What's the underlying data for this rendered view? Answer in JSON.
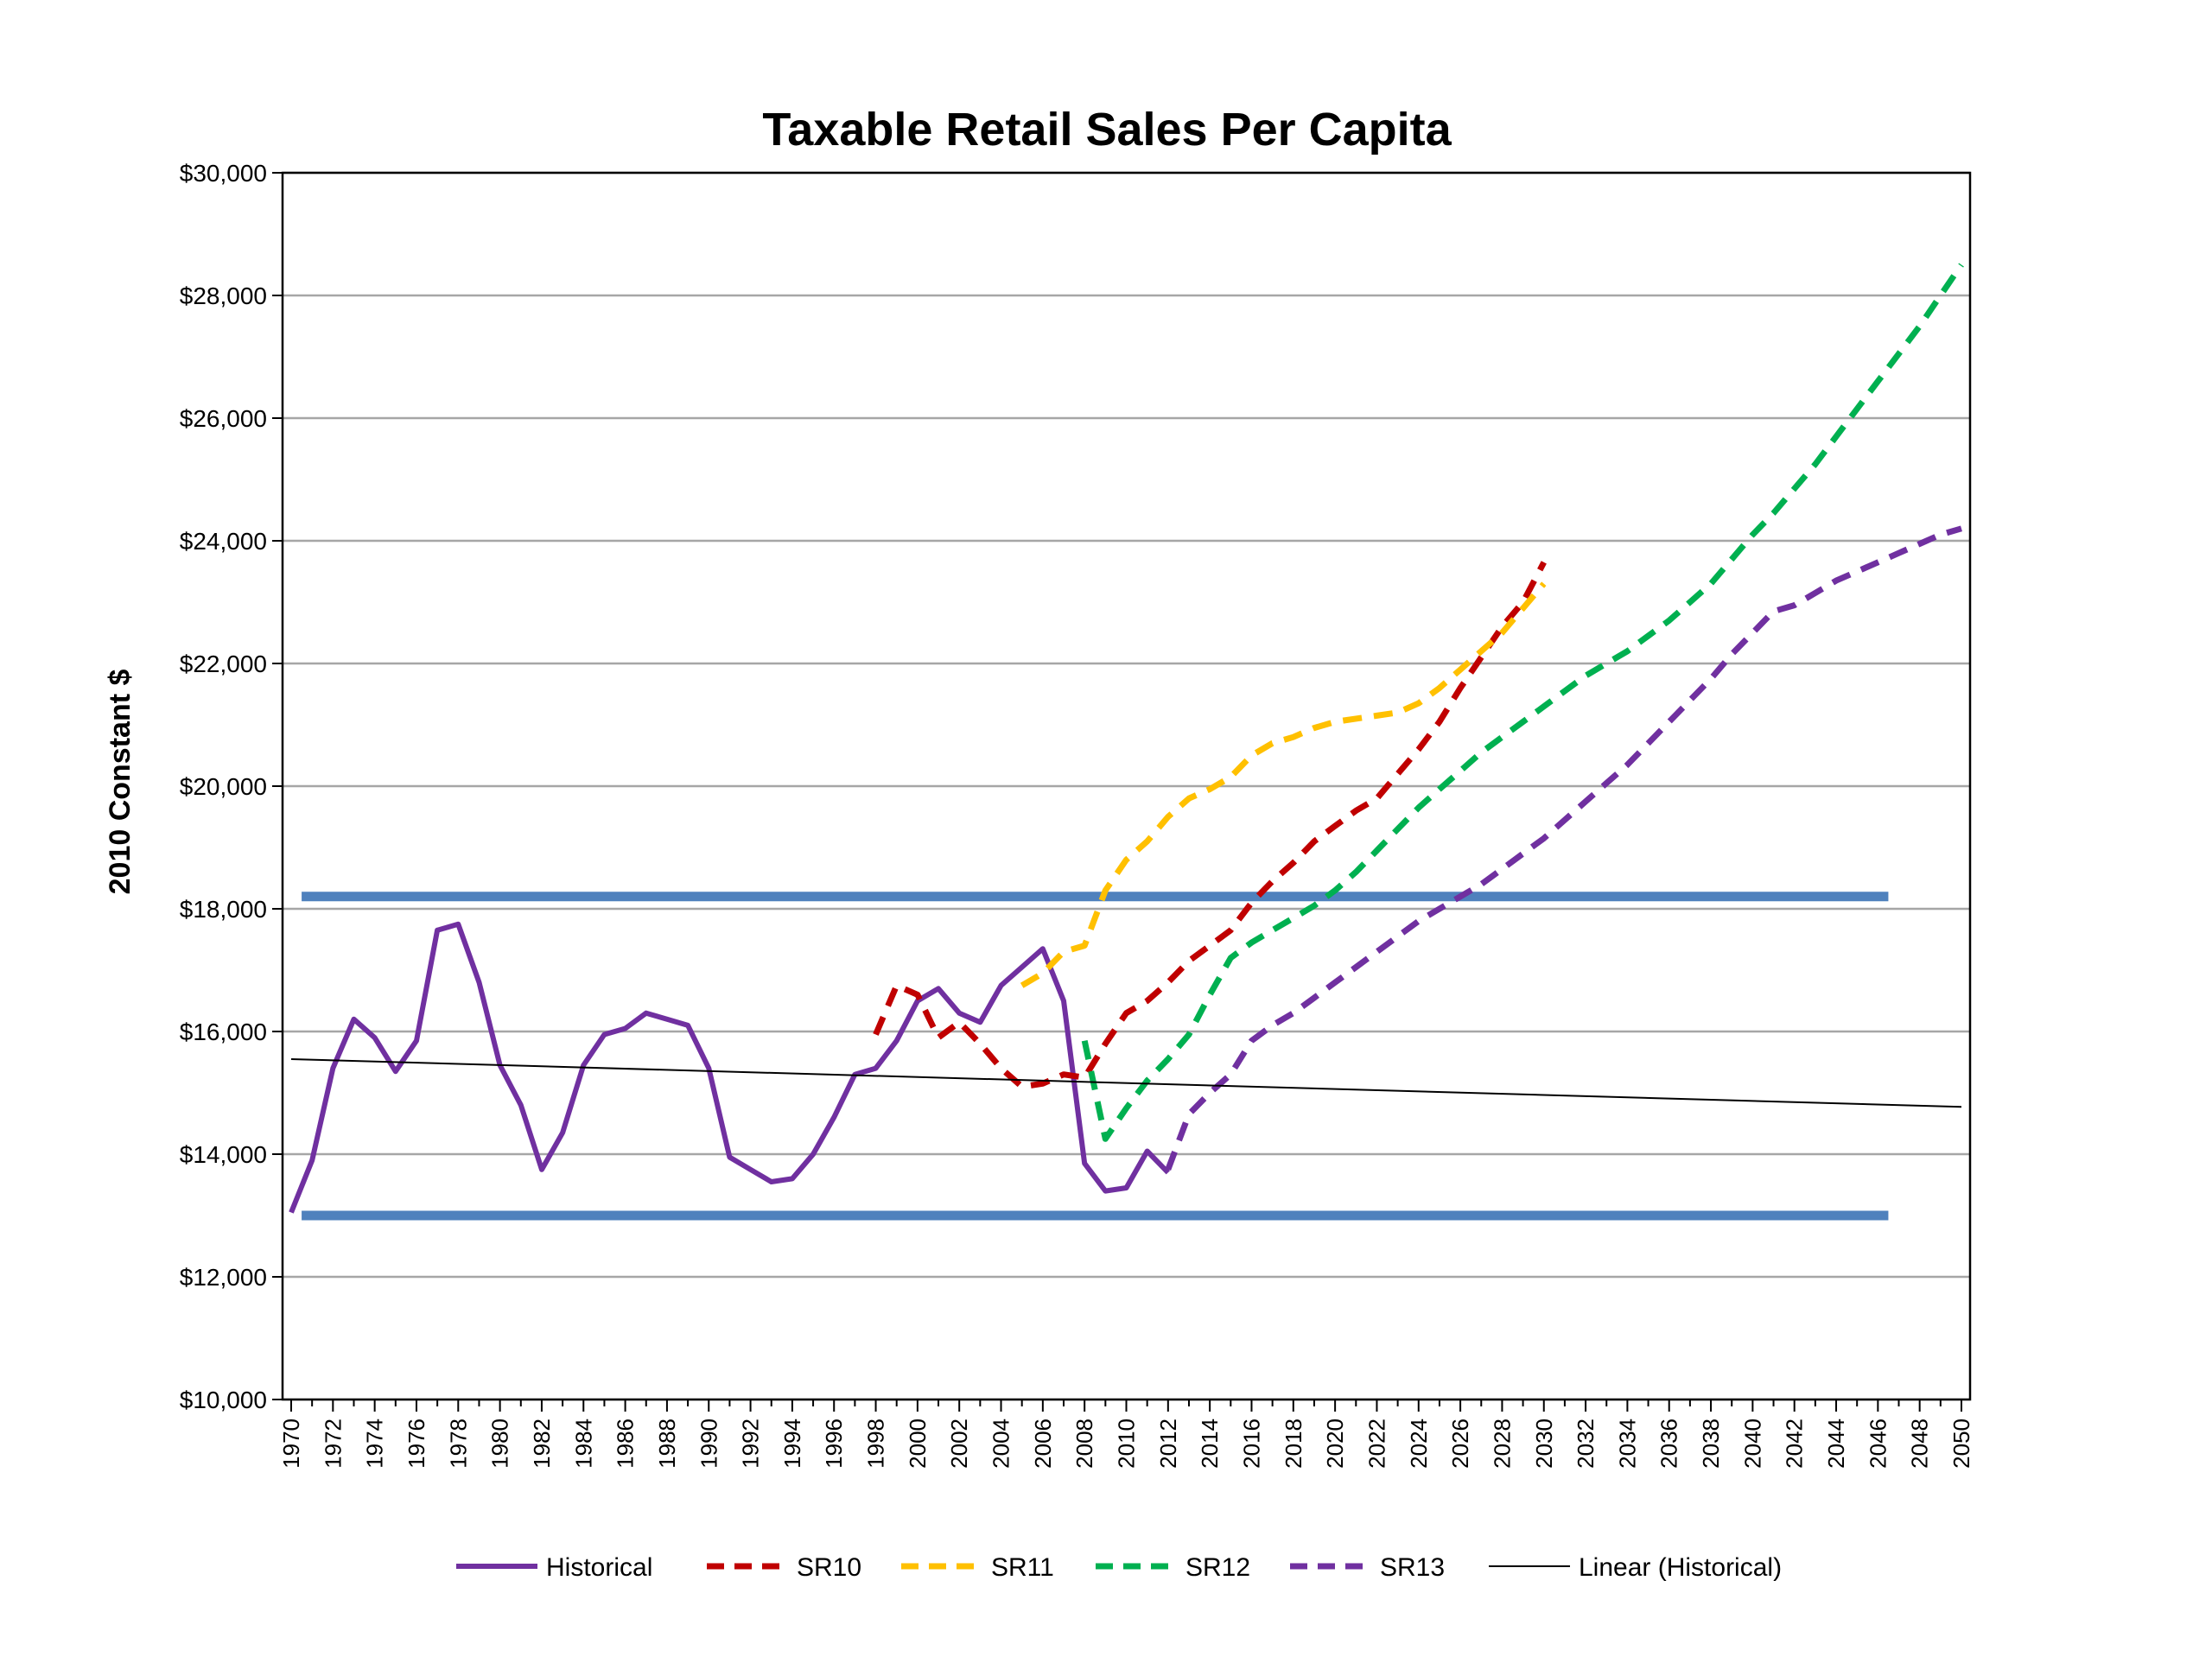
{
  "chart_data": {
    "type": "line",
    "title": "Taxable Retail Sales Per Capita",
    "ylabel": "2010 Constant $",
    "xlabel": "",
    "xlim": [
      1970,
      2050
    ],
    "ylim": [
      10000,
      30000
    ],
    "y_ticks": [
      10000,
      12000,
      14000,
      16000,
      18000,
      20000,
      22000,
      24000,
      26000,
      28000,
      30000
    ],
    "y_tick_labels": [
      "$10,000",
      "$12,000",
      "$14,000",
      "$16,000",
      "$18,000",
      "$20,000",
      "$22,000",
      "$24,000",
      "$26,000",
      "$28,000",
      "$30,000"
    ],
    "x_ticks": [
      "1970",
      "1972",
      "1974",
      "1976",
      "1978",
      "1980",
      "1982",
      "1984",
      "1986",
      "1988",
      "1990",
      "1992",
      "1994",
      "1996",
      "1998",
      "2000",
      "2002",
      "2004",
      "2006",
      "2008",
      "2010",
      "2012",
      "2014",
      "2016",
      "2018",
      "2020",
      "2022",
      "2024",
      "2026",
      "2028",
      "2030",
      "2032",
      "2034",
      "2036",
      "2038",
      "2040",
      "2042",
      "2044",
      "2046",
      "2048",
      "2050"
    ],
    "grid": true,
    "legend_position": "bottom",
    "series": [
      {
        "name": "Historical",
        "color": "#7030a0",
        "style": "solid",
        "x": [
          1970,
          1971,
          1972,
          1973,
          1974,
          1975,
          1976,
          1977,
          1978,
          1979,
          1980,
          1981,
          1982,
          1983,
          1984,
          1985,
          1986,
          1987,
          1988,
          1989,
          1990,
          1991,
          1992,
          1993,
          1994,
          1995,
          1996,
          1997,
          1998,
          1999,
          2000,
          2001,
          2002,
          2003,
          2004,
          2005,
          2006,
          2007,
          2008,
          2009,
          2010,
          2011,
          2012
        ],
        "values": [
          13050,
          13900,
          15400,
          16200,
          15900,
          15350,
          15850,
          17650,
          17750,
          16800,
          15450,
          14800,
          13750,
          14350,
          15450,
          15950,
          16050,
          16300,
          16200,
          16100,
          15400,
          13950,
          13750,
          13550,
          13600,
          14000,
          14600,
          15300,
          15400,
          15850,
          16500,
          16700,
          16300,
          16150,
          16750,
          17050,
          17350,
          16500,
          13850,
          13400,
          13450,
          14050,
          13700
        ]
      },
      {
        "name": "SR10",
        "color": "#c00000",
        "style": "dashed",
        "x": [
          1998,
          1999,
          2000,
          2001,
          2002,
          2003,
          2004,
          2005,
          2006,
          2007,
          2008,
          2009,
          2010,
          2011,
          2012,
          2013,
          2014,
          2015,
          2016,
          2017,
          2018,
          2019,
          2020,
          2021,
          2022,
          2023,
          2024,
          2025,
          2026,
          2027,
          2028,
          2029,
          2030
        ],
        "values": [
          15950,
          16750,
          16600,
          15900,
          16150,
          15800,
          15400,
          15100,
          15150,
          15300,
          15250,
          15800,
          16300,
          16500,
          16800,
          17150,
          17400,
          17650,
          18100,
          18450,
          18750,
          19100,
          19350,
          19600,
          19800,
          20200,
          20600,
          21050,
          21600,
          22100,
          22600,
          23000,
          23650
        ]
      },
      {
        "name": "SR11",
        "color": "#ffc000",
        "style": "dashed",
        "x": [
          2005,
          2006,
          2007,
          2008,
          2009,
          2010,
          2011,
          2012,
          2013,
          2014,
          2015,
          2016,
          2017,
          2018,
          2019,
          2020,
          2021,
          2022,
          2023,
          2024,
          2025,
          2026,
          2027,
          2028,
          2029,
          2030
        ],
        "values": [
          16750,
          16950,
          17300,
          17400,
          18300,
          18800,
          19100,
          19500,
          19800,
          19950,
          20150,
          20500,
          20700,
          20800,
          20950,
          21050,
          21100,
          21150,
          21200,
          21350,
          21600,
          21900,
          22200,
          22500,
          22900,
          23300
        ]
      },
      {
        "name": "SR12",
        "color": "#00b050",
        "style": "dashed",
        "x": [
          2008,
          2009,
          2010,
          2011,
          2012,
          2013,
          2014,
          2015,
          2016,
          2017,
          2018,
          2019,
          2020,
          2021,
          2022,
          2023,
          2024,
          2025,
          2026,
          2027,
          2028,
          2029,
          2030,
          2031,
          2032,
          2033,
          2034,
          2035,
          2036,
          2037,
          2038,
          2039,
          2040,
          2041,
          2042,
          2043,
          2044,
          2045,
          2046,
          2047,
          2048,
          2049,
          2050
        ],
        "values": [
          15850,
          14250,
          14750,
          15200,
          15550,
          15950,
          16600,
          17200,
          17450,
          17650,
          17850,
          18050,
          18300,
          18600,
          18950,
          19300,
          19650,
          19950,
          20250,
          20550,
          20800,
          21050,
          21300,
          21550,
          21800,
          22000,
          22200,
          22450,
          22700,
          23000,
          23300,
          23700,
          24100,
          24450,
          24850,
          25250,
          25700,
          26150,
          26600,
          27050,
          27500,
          28000,
          28500
        ]
      },
      {
        "name": "SR13",
        "color": "#7030a0",
        "style": "dashed",
        "x": [
          2012,
          2013,
          2014,
          2015,
          2016,
          2017,
          2018,
          2019,
          2020,
          2021,
          2022,
          2023,
          2024,
          2025,
          2026,
          2027,
          2028,
          2029,
          2030,
          2031,
          2032,
          2033,
          2034,
          2035,
          2036,
          2037,
          2038,
          2039,
          2040,
          2041,
          2042,
          2043,
          2044,
          2045,
          2046,
          2047,
          2048,
          2049,
          2050
        ],
        "values": [
          13750,
          14650,
          15000,
          15300,
          15850,
          16100,
          16300,
          16550,
          16800,
          17050,
          17300,
          17550,
          17800,
          18000,
          18200,
          18400,
          18650,
          18900,
          19150,
          19450,
          19750,
          20050,
          20350,
          20700,
          21050,
          21400,
          21750,
          22150,
          22500,
          22850,
          22950,
          23150,
          23350,
          23500,
          23650,
          23800,
          23950,
          24100,
          24200
        ]
      },
      {
        "name": "Linear (Historical)",
        "color": "#000000",
        "style": "thin",
        "x": [
          1970,
          2050
        ],
        "values": [
          15550,
          14770
        ]
      }
    ],
    "reference_lines": [
      {
        "y": 18200,
        "x_start": 1970.5,
        "x_end": 2046.5,
        "color": "#4f81bd"
      },
      {
        "y": 13000,
        "x_start": 1970.5,
        "x_end": 2046.5,
        "color": "#4f81bd"
      }
    ]
  }
}
